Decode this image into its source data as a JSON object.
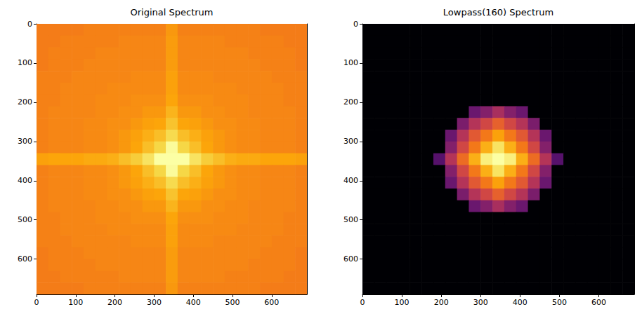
{
  "chart_data": [
    {
      "type": "heatmap",
      "title": "Original Spectrum",
      "color": "inferno",
      "x": [
        15,
        45,
        75,
        105,
        135,
        165,
        195,
        225,
        255,
        285,
        315,
        345,
        375,
        405,
        435,
        465,
        495,
        525,
        555,
        585,
        615,
        645,
        675
      ],
      "y": [
        15,
        45,
        75,
        105,
        135,
        165,
        195,
        225,
        255,
        285,
        315,
        345,
        375,
        405,
        435,
        465,
        495,
        525,
        555,
        585,
        615,
        645,
        675
      ],
      "xlim": [
        0,
        690
      ],
      "ylim": [
        690,
        0
      ],
      "xticks": [
        0,
        100,
        200,
        300,
        400,
        500,
        600
      ],
      "yticks": [
        0,
        100,
        200,
        300,
        400,
        500,
        600
      ],
      "zlim": [
        0,
        10
      ],
      "cells": [
        [
          7.1,
          7.1,
          7.1,
          7.1,
          7.2,
          7.2,
          7.2,
          7.2,
          7.2,
          7.2,
          7.2,
          7.7,
          7.2,
          7.2,
          7.2,
          7.2,
          7.2,
          7.2,
          7.2,
          7.1,
          7.1,
          7.1,
          7.1
        ],
        [
          7.1,
          7.1,
          7.2,
          7.2,
          7.2,
          7.2,
          7.2,
          7.3,
          7.3,
          7.3,
          7.3,
          7.8,
          7.3,
          7.3,
          7.3,
          7.3,
          7.2,
          7.2,
          7.2,
          7.2,
          7.2,
          7.1,
          7.1
        ],
        [
          7.1,
          7.2,
          7.2,
          7.2,
          7.2,
          7.3,
          7.3,
          7.3,
          7.3,
          7.3,
          7.3,
          7.8,
          7.3,
          7.3,
          7.3,
          7.3,
          7.3,
          7.3,
          7.2,
          7.2,
          7.2,
          7.2,
          7.1
        ],
        [
          7.1,
          7.2,
          7.2,
          7.2,
          7.3,
          7.3,
          7.3,
          7.3,
          7.3,
          7.3,
          7.3,
          7.8,
          7.3,
          7.3,
          7.3,
          7.3,
          7.3,
          7.3,
          7.3,
          7.2,
          7.2,
          7.2,
          7.1
        ],
        [
          7.2,
          7.2,
          7.2,
          7.3,
          7.3,
          7.3,
          7.3,
          7.3,
          7.4,
          7.4,
          7.4,
          7.9,
          7.4,
          7.4,
          7.4,
          7.3,
          7.3,
          7.3,
          7.3,
          7.3,
          7.2,
          7.2,
          7.2
        ],
        [
          7.2,
          7.2,
          7.3,
          7.3,
          7.3,
          7.3,
          7.4,
          7.4,
          7.4,
          7.4,
          7.4,
          7.9,
          7.4,
          7.4,
          7.4,
          7.4,
          7.4,
          7.3,
          7.3,
          7.3,
          7.3,
          7.2,
          7.2
        ],
        [
          7.2,
          7.2,
          7.3,
          7.3,
          7.3,
          7.4,
          7.4,
          7.4,
          7.5,
          7.5,
          7.5,
          8.0,
          7.5,
          7.5,
          7.5,
          7.4,
          7.4,
          7.4,
          7.3,
          7.3,
          7.3,
          7.2,
          7.2
        ],
        [
          7.2,
          7.3,
          7.3,
          7.3,
          7.3,
          7.4,
          7.4,
          7.5,
          7.5,
          7.7,
          7.7,
          8.3,
          7.7,
          7.7,
          7.5,
          7.5,
          7.4,
          7.4,
          7.3,
          7.3,
          7.3,
          7.3,
          7.2
        ],
        [
          7.2,
          7.3,
          7.3,
          7.3,
          7.4,
          7.4,
          7.5,
          7.5,
          7.7,
          7.9,
          8.0,
          8.6,
          8.0,
          7.9,
          7.7,
          7.5,
          7.5,
          7.4,
          7.4,
          7.3,
          7.3,
          7.3,
          7.2
        ],
        [
          7.2,
          7.3,
          7.3,
          7.3,
          7.4,
          7.4,
          7.5,
          7.7,
          7.9,
          8.2,
          8.5,
          9.1,
          8.5,
          8.2,
          7.9,
          7.7,
          7.5,
          7.4,
          7.4,
          7.3,
          7.3,
          7.3,
          7.2
        ],
        [
          7.2,
          7.3,
          7.3,
          7.3,
          7.4,
          7.4,
          7.5,
          7.7,
          8.0,
          8.5,
          9.0,
          9.9,
          9.0,
          8.5,
          8.0,
          7.7,
          7.5,
          7.4,
          7.4,
          7.3,
          7.3,
          7.3,
          7.2
        ],
        [
          7.9,
          8.0,
          8.0,
          8.0,
          8.1,
          8.1,
          8.2,
          8.5,
          8.8,
          9.3,
          10,
          10,
          10,
          9.3,
          8.8,
          8.5,
          8.2,
          8.1,
          8.1,
          8.0,
          8.0,
          8.0,
          7.9
        ],
        [
          7.2,
          7.3,
          7.3,
          7.3,
          7.4,
          7.4,
          7.5,
          7.7,
          8.0,
          8.5,
          9.0,
          9.9,
          9.0,
          8.5,
          8.0,
          7.7,
          7.5,
          7.4,
          7.4,
          7.3,
          7.3,
          7.3,
          7.2
        ],
        [
          7.2,
          7.3,
          7.3,
          7.3,
          7.4,
          7.4,
          7.5,
          7.7,
          7.9,
          8.2,
          8.5,
          9.1,
          8.5,
          8.2,
          7.9,
          7.7,
          7.5,
          7.4,
          7.4,
          7.3,
          7.3,
          7.3,
          7.2
        ],
        [
          7.2,
          7.3,
          7.3,
          7.3,
          7.4,
          7.4,
          7.5,
          7.5,
          7.7,
          7.9,
          8.0,
          8.6,
          8.0,
          7.9,
          7.7,
          7.5,
          7.5,
          7.4,
          7.4,
          7.3,
          7.3,
          7.3,
          7.2
        ],
        [
          7.2,
          7.3,
          7.3,
          7.3,
          7.3,
          7.4,
          7.4,
          7.5,
          7.5,
          7.7,
          7.7,
          8.3,
          7.7,
          7.7,
          7.5,
          7.5,
          7.4,
          7.4,
          7.3,
          7.3,
          7.3,
          7.3,
          7.2
        ],
        [
          7.2,
          7.2,
          7.3,
          7.3,
          7.3,
          7.4,
          7.4,
          7.4,
          7.5,
          7.5,
          7.5,
          8.0,
          7.5,
          7.5,
          7.5,
          7.4,
          7.4,
          7.4,
          7.3,
          7.3,
          7.3,
          7.2,
          7.2
        ],
        [
          7.2,
          7.2,
          7.3,
          7.3,
          7.3,
          7.3,
          7.4,
          7.4,
          7.4,
          7.4,
          7.4,
          7.9,
          7.4,
          7.4,
          7.4,
          7.4,
          7.4,
          7.3,
          7.3,
          7.3,
          7.3,
          7.2,
          7.2
        ],
        [
          7.2,
          7.2,
          7.2,
          7.3,
          7.3,
          7.3,
          7.3,
          7.3,
          7.4,
          7.4,
          7.4,
          7.9,
          7.4,
          7.4,
          7.4,
          7.3,
          7.3,
          7.3,
          7.3,
          7.3,
          7.2,
          7.2,
          7.2
        ],
        [
          7.1,
          7.2,
          7.2,
          7.2,
          7.3,
          7.3,
          7.3,
          7.3,
          7.3,
          7.3,
          7.3,
          7.8,
          7.3,
          7.3,
          7.3,
          7.3,
          7.3,
          7.3,
          7.3,
          7.2,
          7.2,
          7.2,
          7.1
        ],
        [
          7.1,
          7.2,
          7.2,
          7.2,
          7.2,
          7.3,
          7.3,
          7.3,
          7.3,
          7.3,
          7.3,
          7.8,
          7.3,
          7.3,
          7.3,
          7.3,
          7.3,
          7.3,
          7.2,
          7.2,
          7.2,
          7.2,
          7.1
        ],
        [
          7.1,
          7.1,
          7.2,
          7.2,
          7.2,
          7.2,
          7.2,
          7.3,
          7.3,
          7.3,
          7.3,
          7.8,
          7.3,
          7.3,
          7.3,
          7.3,
          7.2,
          7.2,
          7.2,
          7.2,
          7.2,
          7.1,
          7.1
        ],
        [
          7.1,
          7.1,
          7.1,
          7.1,
          7.2,
          7.2,
          7.2,
          7.2,
          7.2,
          7.2,
          7.2,
          7.7,
          7.2,
          7.2,
          7.2,
          7.2,
          7.2,
          7.2,
          7.2,
          7.1,
          7.1,
          7.1,
          7.1
        ]
      ]
    },
    {
      "type": "heatmap",
      "title": "Lowpass(160) Spectrum",
      "color": "inferno",
      "x": [
        15,
        45,
        75,
        105,
        135,
        165,
        195,
        225,
        255,
        285,
        315,
        345,
        375,
        405,
        435,
        465,
        495,
        525,
        555,
        585,
        615,
        645,
        675
      ],
      "y": [
        15,
        45,
        75,
        105,
        135,
        165,
        195,
        225,
        255,
        285,
        315,
        345,
        375,
        405,
        435,
        465,
        495,
        525,
        555,
        585,
        615,
        645,
        675
      ],
      "xlim": [
        0,
        690
      ],
      "ylim": [
        690,
        0
      ],
      "xticks": [
        0,
        100,
        200,
        300,
        400,
        500,
        600
      ],
      "yticks": [
        0,
        100,
        200,
        300,
        400,
        500,
        600
      ],
      "zlim": [
        0,
        10
      ],
      "cells": [
        [
          0,
          0,
          0,
          0,
          0,
          0,
          0,
          0,
          0,
          0,
          0,
          0,
          0,
          0,
          0,
          0,
          0,
          0,
          0,
          0,
          0,
          0,
          0
        ],
        [
          0,
          0,
          0,
          0,
          0,
          0,
          0,
          0,
          0,
          0,
          0,
          0,
          0,
          0,
          0,
          0,
          0,
          0,
          0,
          0,
          0,
          0,
          0
        ],
        [
          0,
          0,
          0,
          0,
          0,
          0,
          0,
          0,
          0,
          0,
          0,
          0,
          0,
          0,
          0,
          0,
          0,
          0,
          0,
          0,
          0,
          0,
          0
        ],
        [
          0,
          0,
          0,
          0,
          0,
          0,
          0,
          0,
          0,
          0,
          0,
          0,
          0,
          0,
          0,
          0,
          0,
          0,
          0,
          0,
          0,
          0,
          0
        ],
        [
          0,
          0,
          0,
          0,
          0,
          0,
          0,
          0,
          0,
          0,
          0,
          0,
          0,
          0,
          0,
          0,
          0,
          0,
          0,
          0,
          0,
          0,
          0
        ],
        [
          0,
          0,
          0,
          0,
          0,
          0,
          0,
          0,
          0,
          0,
          0,
          0,
          0,
          0,
          0,
          0,
          0,
          0,
          0,
          0,
          0,
          0,
          0
        ],
        [
          0,
          0,
          0,
          0,
          0,
          0,
          0,
          0,
          0,
          0,
          0,
          0,
          0,
          0,
          0,
          0,
          0,
          0,
          0,
          0,
          0,
          0,
          0
        ],
        [
          0,
          0,
          0,
          0,
          0,
          0,
          0,
          0,
          0,
          3.0,
          3.6,
          4.5,
          3.6,
          3.0,
          0,
          0,
          0,
          0,
          0,
          0,
          0,
          0,
          0
        ],
        [
          0,
          0,
          0,
          0,
          0,
          0,
          0,
          0,
          3.4,
          4.8,
          5.6,
          6.4,
          5.6,
          4.8,
          3.4,
          0,
          0,
          0,
          0,
          0,
          0,
          0,
          0
        ],
        [
          0,
          0,
          0,
          0,
          0,
          0,
          0,
          3.0,
          4.8,
          6.2,
          7.0,
          7.9,
          7.0,
          6.2,
          4.8,
          3.0,
          0,
          0,
          0,
          0,
          0,
          0,
          0
        ],
        [
          0,
          0,
          0,
          0,
          0,
          0,
          0,
          3.6,
          5.6,
          7.0,
          8.2,
          9.3,
          8.2,
          7.0,
          5.6,
          3.6,
          0,
          0,
          0,
          0,
          0,
          0,
          0
        ],
        [
          0,
          0,
          0,
          0,
          0,
          0,
          2.5,
          4.8,
          6.7,
          8.2,
          9.6,
          10,
          9.6,
          8.2,
          6.7,
          4.8,
          2.5,
          0,
          0,
          0,
          0,
          0,
          0
        ],
        [
          0,
          0,
          0,
          0,
          0,
          0,
          0,
          3.6,
          5.6,
          7.0,
          8.2,
          9.3,
          8.2,
          7.0,
          5.6,
          3.6,
          0,
          0,
          0,
          0,
          0,
          0,
          0
        ],
        [
          0,
          0,
          0,
          0,
          0,
          0,
          0,
          3.0,
          4.8,
          6.2,
          7.0,
          7.9,
          7.0,
          6.2,
          4.8,
          3.0,
          0,
          0,
          0,
          0,
          0,
          0,
          0
        ],
        [
          0,
          0,
          0,
          0,
          0,
          0,
          0,
          0,
          3.4,
          4.8,
          5.6,
          6.4,
          5.6,
          4.8,
          3.4,
          0,
          0,
          0,
          0,
          0,
          0,
          0,
          0
        ],
        [
          0,
          0,
          0,
          0,
          0,
          0,
          0,
          0,
          0,
          3.0,
          3.6,
          4.5,
          3.6,
          3.0,
          0,
          0,
          0,
          0,
          0,
          0,
          0,
          0,
          0
        ],
        [
          0,
          0,
          0,
          0,
          0,
          0,
          0,
          0,
          0,
          0,
          0,
          0,
          0,
          0,
          0,
          0,
          0,
          0,
          0,
          0,
          0,
          0,
          0
        ],
        [
          0,
          0,
          0,
          0,
          0,
          0,
          0,
          0,
          0,
          0,
          0,
          0,
          0,
          0,
          0,
          0,
          0,
          0,
          0,
          0,
          0,
          0,
          0
        ],
        [
          0,
          0,
          0,
          0,
          0,
          0,
          0,
          0,
          0,
          0,
          0,
          0,
          0,
          0,
          0,
          0,
          0,
          0,
          0,
          0,
          0,
          0,
          0
        ],
        [
          0,
          0,
          0,
          0,
          0,
          0,
          0,
          0,
          0,
          0,
          0,
          0,
          0,
          0,
          0,
          0,
          0,
          0,
          0,
          0,
          0,
          0,
          0
        ],
        [
          0,
          0,
          0,
          0,
          0,
          0,
          0,
          0,
          0,
          0,
          0,
          0,
          0,
          0,
          0,
          0,
          0,
          0,
          0,
          0,
          0,
          0,
          0
        ],
        [
          0,
          0,
          0,
          0,
          0,
          0,
          0,
          0,
          0,
          0,
          0,
          0,
          0,
          0,
          0,
          0,
          0,
          0,
          0,
          0,
          0,
          0,
          0
        ],
        [
          0,
          0,
          0,
          0,
          0,
          0,
          0,
          0,
          0,
          0,
          0,
          0,
          0,
          0,
          0,
          0,
          0,
          0,
          0,
          0,
          0,
          0,
          0
        ]
      ]
    }
  ]
}
